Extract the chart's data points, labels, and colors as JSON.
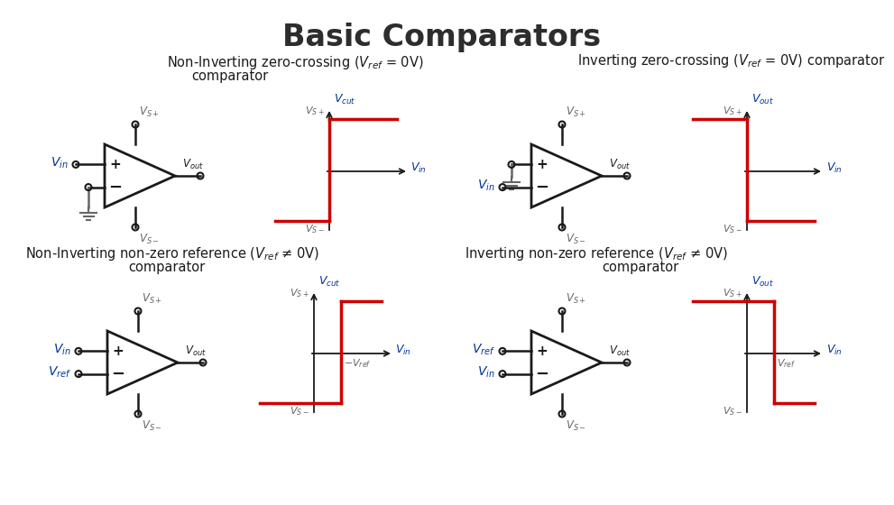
{
  "title": "Basic Comparators",
  "title_fontsize": 24,
  "title_fontweight": "bold",
  "title_color": "#2d2d2d",
  "bg_color": "#ffffff",
  "circuit_color": "#1a1a1a",
  "red_color": "#cc0000",
  "blue_color": "#003399",
  "gray_color": "#666666",
  "sections": [
    {
      "label": "Non-Inverting zero-crossing (V_ref = 0V)\ncomparator",
      "inverting": false,
      "nonzero_ref": false
    },
    {
      "label": "Inverting zero-crossing (V_ref = 0V) comparator",
      "inverting": true,
      "nonzero_ref": false
    },
    {
      "label": "Non-Inverting non-zero reference (V_ref != 0V)\ncomparator",
      "inverting": false,
      "nonzero_ref": true
    },
    {
      "label": "Inverting non-zero reference (V_ref != 0V)\ncomparator",
      "inverting": true,
      "nonzero_ref": true
    }
  ]
}
